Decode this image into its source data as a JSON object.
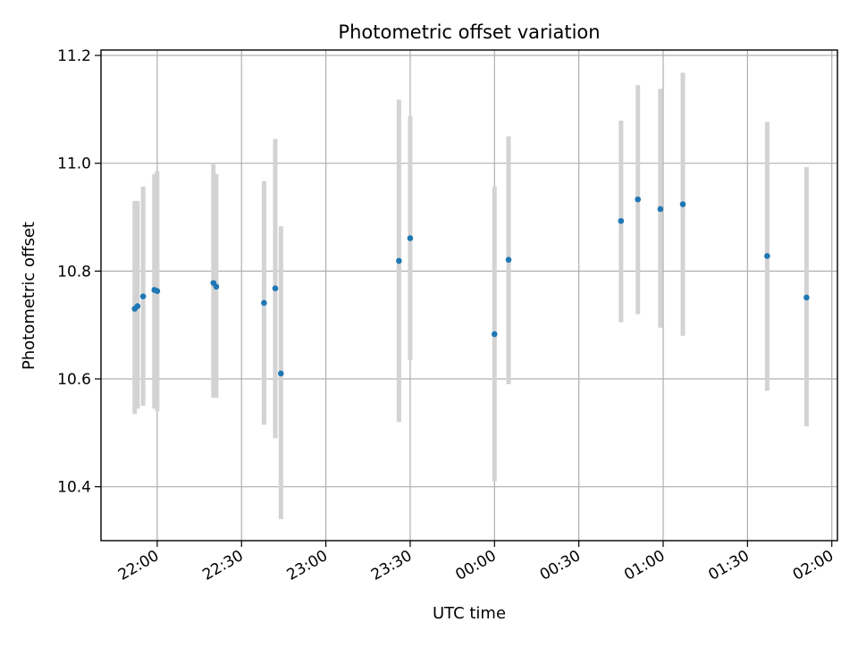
{
  "chart_data": {
    "type": "scatter",
    "title": "Photometric offset variation",
    "xlabel": "UTC time",
    "ylabel": "Photometric offset",
    "xlim": [
      "21:40",
      "02:02"
    ],
    "ylim": [
      10.3,
      11.21
    ],
    "x_ticks": [
      "22:00",
      "22:30",
      "23:00",
      "23:30",
      "00:00",
      "00:30",
      "01:00",
      "01:30",
      "02:00"
    ],
    "y_ticks": [
      "10.4",
      "10.6",
      "10.8",
      "11.0",
      "11.2"
    ],
    "grid": true,
    "marker_color": "#1f77b4",
    "errorbar_color": "#d3d3d3",
    "series": [
      {
        "x": [
          "21:52",
          "21:53",
          "21:55",
          "21:59",
          "22:00",
          "22:20",
          "22:21",
          "22:38",
          "22:42",
          "22:44",
          "23:26",
          "23:30",
          "00:00",
          "00:05",
          "00:45",
          "00:51",
          "00:59",
          "01:07",
          "01:37",
          "01:51"
        ],
        "y": [
          10.73,
          10.735,
          10.753,
          10.765,
          10.763,
          10.778,
          10.771,
          10.741,
          10.768,
          10.61,
          10.819,
          10.861,
          10.683,
          10.821,
          10.893,
          10.933,
          10.915,
          10.924,
          10.828,
          10.751
        ],
        "y_low": [
          10.535,
          10.545,
          10.55,
          10.545,
          10.54,
          10.565,
          10.565,
          10.515,
          10.49,
          10.34,
          10.52,
          10.635,
          10.41,
          10.59,
          10.705,
          10.72,
          10.695,
          10.68,
          10.578,
          10.512
        ],
        "y_high": [
          10.93,
          10.93,
          10.957,
          10.98,
          10.985,
          10.998,
          10.98,
          10.967,
          11.045,
          10.883,
          11.118,
          11.088,
          10.957,
          11.05,
          11.079,
          11.145,
          11.138,
          11.168,
          11.077,
          10.993
        ]
      }
    ]
  }
}
